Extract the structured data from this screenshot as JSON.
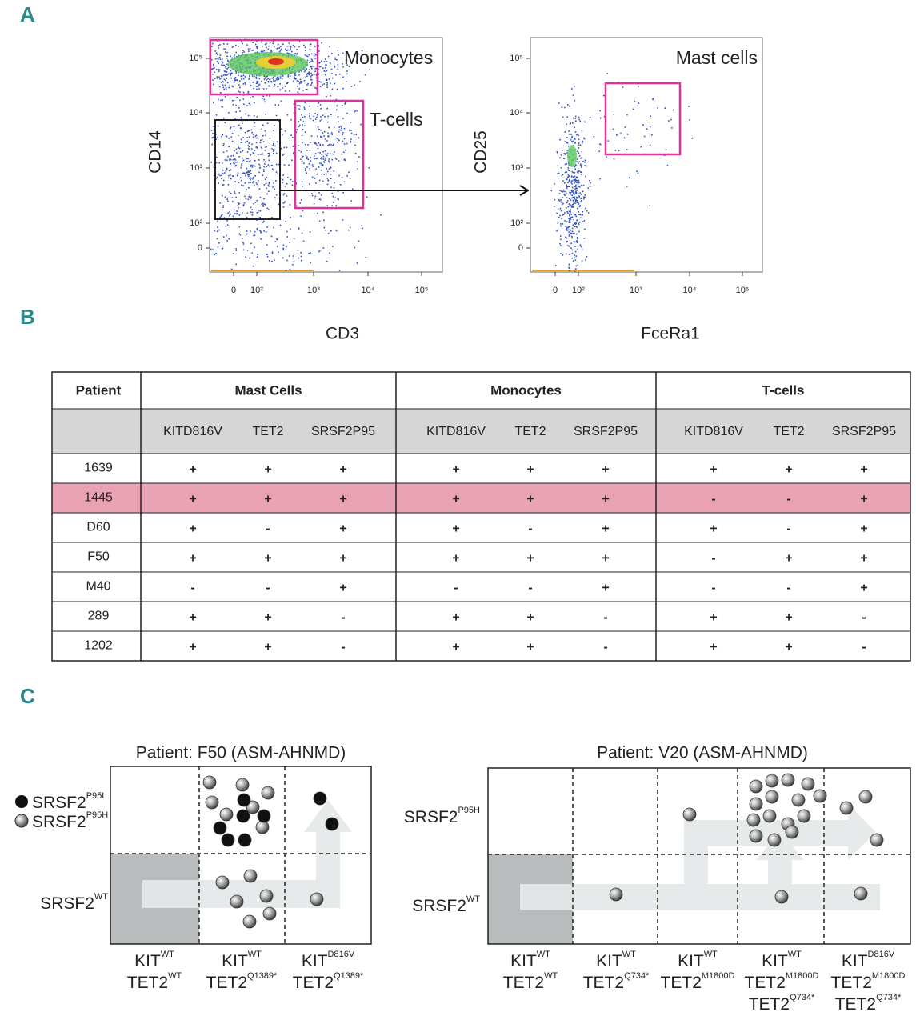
{
  "panel_labels": [
    "A",
    "B",
    "C"
  ],
  "panel_a": {
    "plots": [
      {
        "gates": [
          "Monocytes",
          "T-cells"
        ],
        "y_label": "CD14",
        "x_label": "CD3",
        "yticks": [
          "10⁵",
          "10⁴",
          "10³",
          "10²",
          "0"
        ],
        "xticks": [
          "0",
          "10²",
          "10³",
          "10⁴",
          "10⁵"
        ]
      },
      {
        "gates": [
          "Mast cells"
        ],
        "y_label": "CD25",
        "x_label": "FceRa1",
        "yticks": [
          "10⁵",
          "10⁴",
          "10³",
          "10²",
          "0"
        ],
        "xticks": [
          "0",
          "10²",
          "10³",
          "10⁴",
          "10⁵"
        ]
      }
    ]
  },
  "table": {
    "header": [
      "Patient",
      "Mast Cells",
      "Monocytes",
      "T-cells"
    ],
    "subheader": [
      "KITD816V",
      "TET2",
      "SRSF2P95"
    ],
    "highlight_row": 1,
    "rows": [
      [
        "1639",
        "+",
        "+",
        "+",
        "+",
        "+",
        "+",
        "+",
        "+",
        "+"
      ],
      [
        "1445",
        "+",
        "+",
        "+",
        "+",
        "+",
        "+",
        "-",
        "-",
        "+"
      ],
      [
        "D60",
        "+",
        "-",
        "+",
        "+",
        "-",
        "+",
        "+",
        "-",
        "+"
      ],
      [
        "F50",
        "+",
        "+",
        "+",
        "+",
        "+",
        "+",
        "-",
        "+",
        "+"
      ],
      [
        "M40",
        "-",
        "-",
        "+",
        "-",
        "-",
        "+",
        "-",
        "-",
        "+"
      ],
      [
        "289",
        "+",
        "+",
        "-",
        "+",
        "+",
        "-",
        "+",
        "+",
        "-"
      ],
      [
        "1202",
        "+",
        "+",
        "-",
        "+",
        "+",
        "-",
        "+",
        "+",
        "-"
      ]
    ]
  },
  "panel_c": {
    "legend": [
      {
        "base": "SRSF2",
        "sup": "P95L"
      },
      {
        "base": "SRSF2",
        "sup": "P95H"
      }
    ],
    "diagrams": [
      {
        "title": "Patient: F50 (ASM-AHNMD)",
        "rows": [
          {
            "base": "SRSF2",
            "sup": "WT"
          }
        ],
        "columns": [
          [
            {
              "base": "KIT",
              "sup": "WT"
            },
            {
              "base": "TET2",
              "sup": "WT"
            }
          ],
          [
            {
              "base": "KIT",
              "sup": "WT"
            },
            {
              "base": "TET2",
              "sup": "Q1389*"
            }
          ],
          [
            {
              "base": "KIT",
              "sup": "D816V"
            },
            {
              "base": "TET2",
              "sup": "Q1389*"
            }
          ]
        ]
      },
      {
        "title": "Patient: V20 (ASM-AHNMD)",
        "rows": [
          {
            "base": "SRSF2",
            "sup": "P95H"
          },
          {
            "base": "SRSF2",
            "sup": "WT"
          }
        ],
        "columns": [
          [
            {
              "base": "KIT",
              "sup": "WT"
            },
            {
              "base": "TET2",
              "sup": "WT"
            }
          ],
          [
            {
              "base": "KIT",
              "sup": "WT"
            },
            {
              "base": "TET2",
              "sup": "Q734*"
            }
          ],
          [
            {
              "base": "KIT",
              "sup": "WT"
            },
            {
              "base": "TET2",
              "sup": "M1800D"
            }
          ],
          [
            {
              "base": "KIT",
              "sup": "WT"
            },
            {
              "base": "TET2",
              "sup": "M1800D"
            },
            {
              "base": "TET2",
              "sup": "Q734*"
            }
          ],
          [
            {
              "base": "KIT",
              "sup": "D816V"
            },
            {
              "base": "TET2",
              "sup": "M1800D"
            },
            {
              "base": "TET2",
              "sup": "Q734*"
            }
          ]
        ]
      }
    ]
  }
}
